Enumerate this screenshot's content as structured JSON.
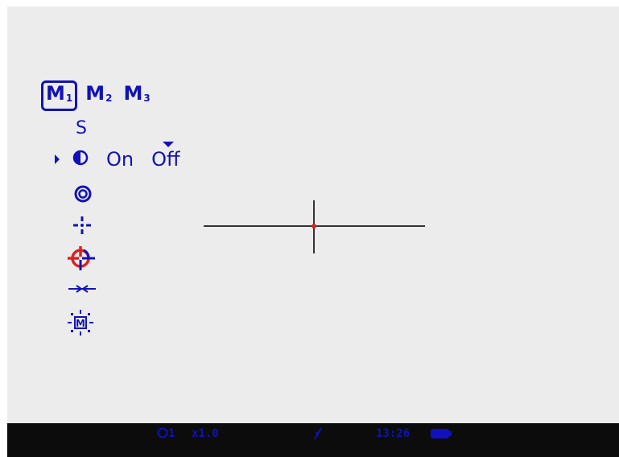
{
  "menu": {
    "profiles": [
      {
        "letter": "M",
        "sub": "1",
        "active": true
      },
      {
        "letter": "M",
        "sub": "2",
        "active": false
      },
      {
        "letter": "M",
        "sub": "3",
        "active": false
      }
    ],
    "s_label": "S",
    "mode_icon": "contrast-half-circle-icon",
    "mode_options": [
      "On",
      "Off"
    ],
    "mode_selected": "Off",
    "icons": [
      "ring-icon",
      "dot-cross-reticle-icon",
      "crosshair-target-icon",
      "zero-arrows-icon",
      "brightness-manual-icon"
    ]
  },
  "reticle": {
    "center_dot_color": "#e02020",
    "line_color": "#333333"
  },
  "status": {
    "profile_indicator": "1",
    "zoom": "x1.0",
    "time": "13:26",
    "wifi_off_icon": "wifi-off-icon",
    "battery_icon": "battery-full-icon"
  },
  "colors": {
    "accent": "#1212b8",
    "active_icon": "#e02020",
    "background": "#ececec",
    "statusbar": "#0c0c0c"
  }
}
